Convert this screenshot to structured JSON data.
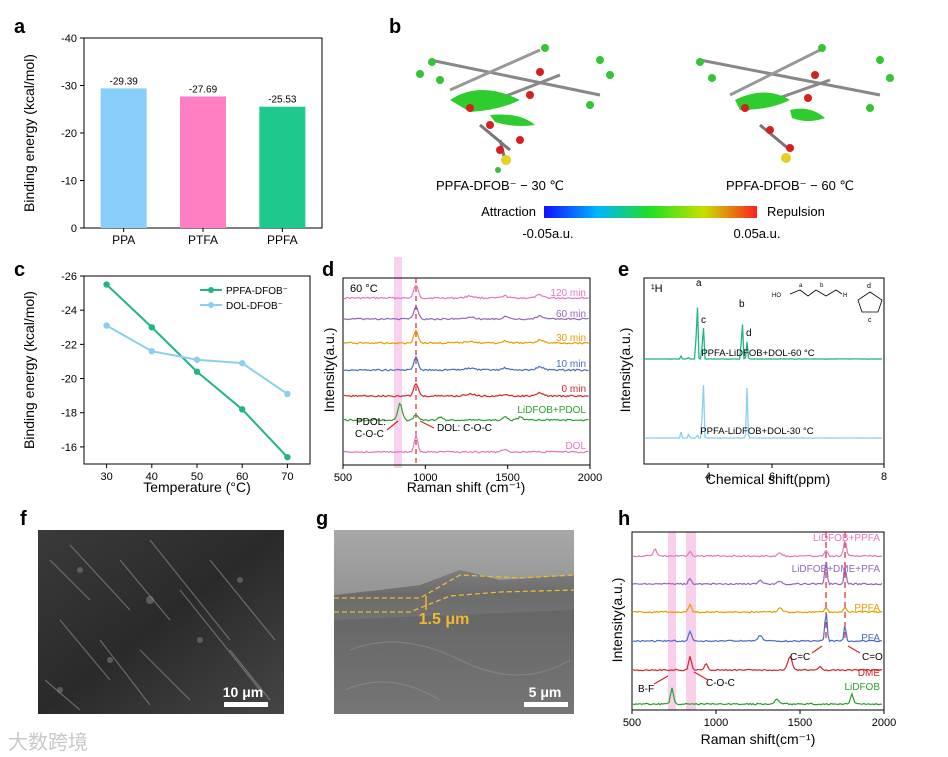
{
  "panels": {
    "a": {
      "letter": "a",
      "chart_data": {
        "type": "bar",
        "categories": [
          "PPA",
          "PTFA",
          "PPFA"
        ],
        "values": [
          -29.39,
          -27.69,
          -25.53
        ],
        "value_labels": [
          "-29.39",
          "-27.69",
          "-25.53"
        ],
        "colors": [
          "#87cefa",
          "#ff7ec4",
          "#1fc98d"
        ],
        "ylabel": "Binding energy (kcal/mol)",
        "ylim": [
          0,
          -40
        ],
        "yticks": [
          "0",
          "-10",
          "-20",
          "-30",
          "-40"
        ],
        "ytick_values": [
          0,
          -10,
          -20,
          -30,
          -40
        ]
      }
    },
    "b": {
      "letter": "b",
      "label_left": "PPFA-DFOB⁻ − 30 ℃",
      "label_right": "PPFA-DFOB⁻ − 60 ℃",
      "attraction": "Attraction",
      "repulsion": "Repulsion",
      "scale_min": "-0.05a.u.",
      "scale_max": "0.05a.u."
    },
    "c": {
      "letter": "c",
      "chart_data": {
        "type": "line",
        "x": [
          30,
          40,
          50,
          60,
          70
        ],
        "series": [
          {
            "name": "PPFA-DFOB⁻",
            "values": [
              -25.5,
              -23.0,
              -20.4,
              -18.2,
              -15.4
            ],
            "color": "#1fb585"
          },
          {
            "name": "DOL-DFOB⁻",
            "values": [
              -23.1,
              -21.6,
              -21.1,
              -20.9,
              -19.1
            ],
            "color": "#8ccfee"
          }
        ],
        "xlabel": "Temperature (°C)",
        "ylabel": "Binding energy (kcal/mol)",
        "xlim": [
          25,
          75
        ],
        "ylim": [
          -15,
          -26
        ],
        "xticks": [
          30,
          40,
          50,
          60,
          70
        ],
        "yticks": [
          -16,
          -18,
          -20,
          -22,
          -24,
          -26
        ],
        "legend": "top-right"
      }
    },
    "d": {
      "letter": "d",
      "temp": "60 °C",
      "chart_data": {
        "type": "line",
        "xlabel": "Raman shift (cm⁻¹)",
        "ylabel": "Intensity(a.u.)",
        "xlim": [
          500,
          2000
        ],
        "xticks": [
          500,
          1000,
          1500,
          2000
        ],
        "series": [
          {
            "name": "120 min",
            "color": "#e377c2"
          },
          {
            "name": "60 min",
            "color": "#9467bd"
          },
          {
            "name": "30 min",
            "color": "#e69f00"
          },
          {
            "name": "10 min",
            "color": "#4c6cc8"
          },
          {
            "name": "0 min",
            "color": "#d62728"
          },
          {
            "name": "LiDFOB+PDOL",
            "color": "#2ca02c"
          },
          {
            "name": "DOL",
            "color": "#e377c2"
          }
        ]
      },
      "ann_pdol_1": "PDOL:",
      "ann_pdol_2": "C-O-C",
      "ann_dol": "DOL: C-O-C"
    },
    "e": {
      "letter": "e",
      "nucleus": "¹H",
      "chart_data": {
        "type": "line",
        "xlabel": "Chemical shift(ppm)",
        "ylabel": "Intensity(a.u.)",
        "xticks": [
          4,
          6,
          8
        ],
        "series": [
          {
            "name": "PPFA-LiDFOB+DOL-60 °C",
            "color": "#1fb585"
          },
          {
            "name": "PPFA-LiDFOB+DOL-30 °C",
            "color": "#8ccfee"
          }
        ]
      },
      "peaks": [
        "a",
        "b",
        "c",
        "d"
      ]
    },
    "f": {
      "letter": "f",
      "scale": "10 μm"
    },
    "g": {
      "letter": "g",
      "scale": "5 μm",
      "thickness": "1.5 μm"
    },
    "h": {
      "letter": "h",
      "chart_data": {
        "type": "line",
        "xlabel": "Raman shift(cm⁻¹)",
        "ylabel": "Intensity(a.u.)",
        "xlim": [
          500,
          2000
        ],
        "xticks": [
          500,
          1000,
          1500,
          2000
        ],
        "series": [
          {
            "name": "LiDFOB+PPFA",
            "color": "#e377c2"
          },
          {
            "name": "LiDFOB+DME+PFA",
            "color": "#9467bd"
          },
          {
            "name": "PPFA",
            "color": "#e69f00"
          },
          {
            "name": "PFA",
            "color": "#4c6cc8"
          },
          {
            "name": "DME",
            "color": "#d62728"
          },
          {
            "name": "LiDFOB",
            "color": "#2ca02c"
          }
        ]
      },
      "ann_cc": "C=C",
      "ann_co": "C=O",
      "ann_bf": "B-F",
      "ann_coc": "C-O-C"
    }
  },
  "watermark": "大数跨境"
}
